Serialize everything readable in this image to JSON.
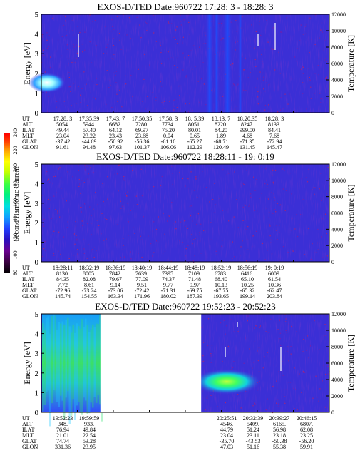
{
  "colorbar": {
    "label": "Second Harmonic Current",
    "ticks": [
      "240",
      "220",
      "200",
      "180",
      "160",
      "140",
      "120",
      "100",
      "80"
    ],
    "colors": [
      "#000000",
      "#3a0040",
      "#6a0090",
      "#2a10c0",
      "#2040ff",
      "#10a0ff",
      "#00e0e0",
      "#00f080",
      "#40ff40",
      "#c0ff00",
      "#ffff00",
      "#ffa000",
      "#ff4000",
      "#ff0000"
    ]
  },
  "chart_data": [
    {
      "type": "heatmap",
      "title": "EXOS-D/TED   Date:960722  17:28: 3 - 18:28: 3",
      "ylabel": "Energy [eV]",
      "y2label": "Temperature [K]",
      "ylim": [
        0,
        5
      ],
      "y2lim": [
        0,
        12000
      ],
      "yticks": [
        "0",
        "1",
        "2",
        "3",
        "4",
        "5"
      ],
      "y2ticks": [
        "0",
        "2000",
        "4000",
        "6000",
        "8000",
        "10000",
        "12000"
      ],
      "data_gaps": [],
      "ephemeris": {
        "labels": [
          "UT",
          "ALT",
          "ILAT",
          "MLT",
          "GLAT",
          "GLON"
        ],
        "columns": [
          [
            "17:28: 3",
            "5054.",
            "49.44",
            "23.04",
            "-37.42",
            "91.61"
          ],
          [
            "17:35:39",
            "5944.",
            "57.40",
            "23.22",
            "-44.69",
            "94.48"
          ],
          [
            "17:43: 7",
            "6682.",
            "64.12",
            "23.43",
            "-50.92",
            "97.63"
          ],
          [
            "17:50:35",
            "7280.",
            "69.97",
            "23.68",
            "-56.36",
            "101.37"
          ],
          [
            "17:58: 3",
            "7734.",
            "75.20",
            "0.04",
            "-61.10",
            "106.06"
          ],
          [
            "18: 5:39",
            "8051.",
            "80.01",
            "0.65",
            "-65.27",
            "112.29"
          ],
          [
            "18:13: 7",
            "8220.",
            "84.20",
            "1.89",
            "-68.71",
            "120.49"
          ],
          [
            "18:20:35",
            "8247.",
            "999.00",
            "4.68",
            "-71.35",
            "131.45"
          ],
          [
            "18:28: 3",
            "8133.",
            "84.41",
            "7.68",
            "-72.94",
            "145.47"
          ]
        ]
      }
    },
    {
      "type": "heatmap",
      "title": "EXOS-D/TED   Date:960722  18:28:11 - 19: 0:19",
      "ylabel": "Energy [eV]",
      "y2label": "Temperature [K]",
      "ylim": [
        0,
        5
      ],
      "y2lim": [
        0,
        12000
      ],
      "yticks": [
        "0",
        "1",
        "2",
        "3",
        "4",
        "5"
      ],
      "y2ticks": [
        "0",
        "2000",
        "4000",
        "6000",
        "8000",
        "10000",
        "12000"
      ],
      "data_gaps": [],
      "ephemeris": {
        "labels": [
          "UT",
          "ALT",
          "ILAT",
          "MLT",
          "GLAT",
          "GLON"
        ],
        "columns": [
          [
            "18:28:11",
            "8130.",
            "84.35",
            "7.72",
            "-72.96",
            "145.74"
          ],
          [
            "18:32:19",
            "8005.",
            "82.08",
            "8.61",
            "-73.24",
            "154.55"
          ],
          [
            "18:36:19",
            "7842.",
            "79.67",
            "9.14",
            "-73.06",
            "163.34"
          ],
          [
            "18:40:19",
            "7639.",
            "77.09",
            "9.51",
            "-72.42",
            "171.96"
          ],
          [
            "18:44:19",
            "7395.",
            "74.37",
            "9.77",
            "-71.31",
            "180.02"
          ],
          [
            "18:48:19",
            "7109.",
            "71.48",
            "9.97",
            "-69.75",
            "187.39"
          ],
          [
            "18:52:19",
            "6783.",
            "68.40",
            "10.13",
            "-67.75",
            "193.65"
          ],
          [
            "18:56:19",
            "6416.",
            "65.10",
            "10.25",
            "-65.32",
            "199.14"
          ],
          [
            "19: 0:19",
            "6009.",
            "61.54",
            "10.36",
            "-62.47",
            "203.84"
          ]
        ]
      }
    },
    {
      "type": "heatmap",
      "title": "EXOS-D/TED   Date:960722  19:52:23 - 20:52:23",
      "ylabel": "Energy [eV]",
      "y2label": "Temperature [K]",
      "ylim": [
        0,
        5
      ],
      "y2lim": [
        0,
        12000
      ],
      "yticks": [
        "0",
        "1",
        "2",
        "3",
        "4",
        "5"
      ],
      "y2ticks": [
        "0",
        "2000",
        "4000",
        "6000",
        "8000",
        "10000",
        "12000"
      ],
      "data_gaps": [
        [
          0.205,
          0.555
        ]
      ],
      "ephemeris": {
        "labels": [
          "UT",
          "ALT",
          "ILAT",
          "MLT",
          "GLAT",
          "GLON"
        ],
        "columns": [
          [
            "19:52:23",
            "348.",
            "76.94",
            "21.01",
            "74.74",
            "331.36"
          ],
          [
            "19:59:59",
            "933.",
            "49.84",
            "22.54",
            "53.28",
            "23.95"
          ],
          [
            "20:25:51",
            "4546.",
            "44.79",
            "23.04",
            "-35.70",
            "47.03"
          ],
          [
            "20:32:39",
            "5409.",
            "51.24",
            "23.11",
            "-43.53",
            "51.16"
          ],
          [
            "20:39:27",
            "6165.",
            "56.98",
            "23.18",
            "-50.38",
            "55.38"
          ],
          [
            "20:46:15",
            "6807.",
            "62.08",
            "23.25",
            "-56.20",
            "59.91"
          ]
        ]
      }
    }
  ]
}
